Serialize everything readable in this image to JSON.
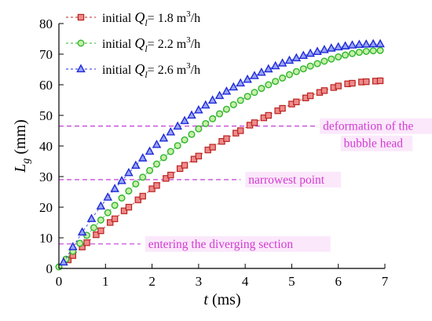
{
  "chart_data": {
    "type": "scatter",
    "xlabel_var": "t",
    "xlabel_unit": " (ms)",
    "ylabel_var": "L",
    "ylabel_sub": "g",
    "ylabel_unit": " (mm)",
    "xlim": [
      0,
      7
    ],
    "ylim": [
      0,
      80
    ],
    "xticks": [
      0,
      1,
      2,
      3,
      4,
      5,
      6,
      7
    ],
    "yticks": [
      0,
      10,
      20,
      30,
      40,
      50,
      60,
      70,
      80
    ],
    "grid": false,
    "legend_position": "top-left",
    "series": [
      {
        "name_prefix": "initial ",
        "name_var": "Q",
        "name_sub": "l",
        "name_value": "= 1.8 m",
        "name_sup": "3",
        "name_unit": "/h",
        "marker": "square",
        "fill": "#ee8a8a",
        "stroke": "#b8231f",
        "x": [
          0.2,
          0.3,
          0.5,
          0.6,
          0.8,
          0.9,
          1.1,
          1.2,
          1.4,
          1.5,
          1.7,
          1.8,
          2.0,
          2.1,
          2.3,
          2.4,
          2.6,
          2.7,
          2.9,
          3.0,
          3.2,
          3.3,
          3.5,
          3.6,
          3.8,
          3.9,
          4.1,
          4.2,
          4.4,
          4.5,
          4.7,
          4.8,
          5.0,
          5.1,
          5.3,
          5.4,
          5.6,
          5.7,
          5.9,
          6.0,
          6.2,
          6.3,
          6.5,
          6.6,
          6.8,
          6.9
        ],
        "y": [
          2.8,
          4.2,
          7.0,
          8.4,
          11.0,
          12.3,
          15.0,
          16.2,
          18.8,
          20.0,
          22.4,
          23.6,
          26.0,
          27.1,
          29.4,
          30.5,
          32.6,
          33.7,
          35.7,
          36.7,
          38.7,
          39.6,
          41.5,
          42.4,
          44.2,
          45.0,
          46.8,
          47.6,
          49.2,
          50.0,
          51.5,
          52.3,
          53.7,
          54.4,
          55.7,
          56.4,
          57.5,
          58.1,
          59.1,
          59.6,
          60.3,
          60.5,
          60.9,
          61.0,
          61.2,
          61.3
        ]
      },
      {
        "name_prefix": "initial ",
        "name_var": "Q",
        "name_sub": "l",
        "name_value": "= 2.2 m",
        "name_sup": "3",
        "name_unit": "/h",
        "marker": "circle",
        "fill": "#c6f0a6",
        "stroke": "#2fb52f",
        "x": [
          0.0,
          0.15,
          0.3,
          0.45,
          0.6,
          0.75,
          0.9,
          1.05,
          1.2,
          1.35,
          1.5,
          1.65,
          1.8,
          1.95,
          2.1,
          2.25,
          2.4,
          2.55,
          2.7,
          2.85,
          3.0,
          3.15,
          3.3,
          3.45,
          3.6,
          3.75,
          3.9,
          4.05,
          4.2,
          4.35,
          4.5,
          4.65,
          4.8,
          4.95,
          5.1,
          5.25,
          5.4,
          5.55,
          5.7,
          5.85,
          6.0,
          6.15,
          6.3,
          6.45,
          6.6,
          6.75,
          6.9
        ],
        "y": [
          0.5,
          3.0,
          5.6,
          8.2,
          10.8,
          13.3,
          15.8,
          18.2,
          20.6,
          23.0,
          25.3,
          27.6,
          29.8,
          32.0,
          34.1,
          36.2,
          38.2,
          40.1,
          42.0,
          43.8,
          45.6,
          47.3,
          48.9,
          50.5,
          52.0,
          53.5,
          54.9,
          56.2,
          57.5,
          58.8,
          60.0,
          61.1,
          62.2,
          63.3,
          64.3,
          65.2,
          66.1,
          66.9,
          67.7,
          68.4,
          69.1,
          69.7,
          70.2,
          70.6,
          70.9,
          71.1,
          71.2
        ]
      },
      {
        "name_prefix": "initial ",
        "name_var": "Q",
        "name_sub": "l",
        "name_value": "= 2.6 m",
        "name_sup": "3",
        "name_unit": "/h",
        "marker": "triangle",
        "fill": "#9aa4f5",
        "stroke": "#1f2bd8",
        "x": [
          0.1,
          0.3,
          0.5,
          0.7,
          0.9,
          1.05,
          1.2,
          1.35,
          1.5,
          1.65,
          1.8,
          1.95,
          2.1,
          2.25,
          2.4,
          2.55,
          2.7,
          2.85,
          3.0,
          3.15,
          3.3,
          3.45,
          3.6,
          3.75,
          3.9,
          4.05,
          4.2,
          4.35,
          4.5,
          4.65,
          4.8,
          4.95,
          5.1,
          5.25,
          5.4,
          5.55,
          5.7,
          5.85,
          6.0,
          6.15,
          6.3,
          6.45,
          6.6,
          6.75,
          6.9
        ],
        "y": [
          2.0,
          7.0,
          11.8,
          16.2,
          20.3,
          23.2,
          26.0,
          28.6,
          31.2,
          33.6,
          36.0,
          38.2,
          40.4,
          42.5,
          44.5,
          46.4,
          48.2,
          50.0,
          51.7,
          53.3,
          54.9,
          56.4,
          57.8,
          59.2,
          60.5,
          61.7,
          62.9,
          64.0,
          65.1,
          66.1,
          67.0,
          67.9,
          68.7,
          69.5,
          70.2,
          70.8,
          71.4,
          71.9,
          72.3,
          72.6,
          72.9,
          73.1,
          73.2,
          73.3,
          73.3
        ]
      }
    ],
    "reference_lines": [
      {
        "y": 46.5,
        "x_start": 0,
        "x_end": 5.5,
        "label": [
          "deformation of the",
          "bubble head"
        ]
      },
      {
        "y": 29.0,
        "x_start": 0,
        "x_end": 3.9,
        "label": [
          "narrowest point"
        ]
      },
      {
        "y": 8.0,
        "x_start": 0,
        "x_end": 1.75,
        "label": [
          "entering the diverging section"
        ]
      }
    ],
    "colors": {
      "axis": "#000000",
      "annotation_text": "#d23ad2",
      "annotation_line": "#c23fd6",
      "annotation_bg": "#fbe8fb"
    }
  }
}
